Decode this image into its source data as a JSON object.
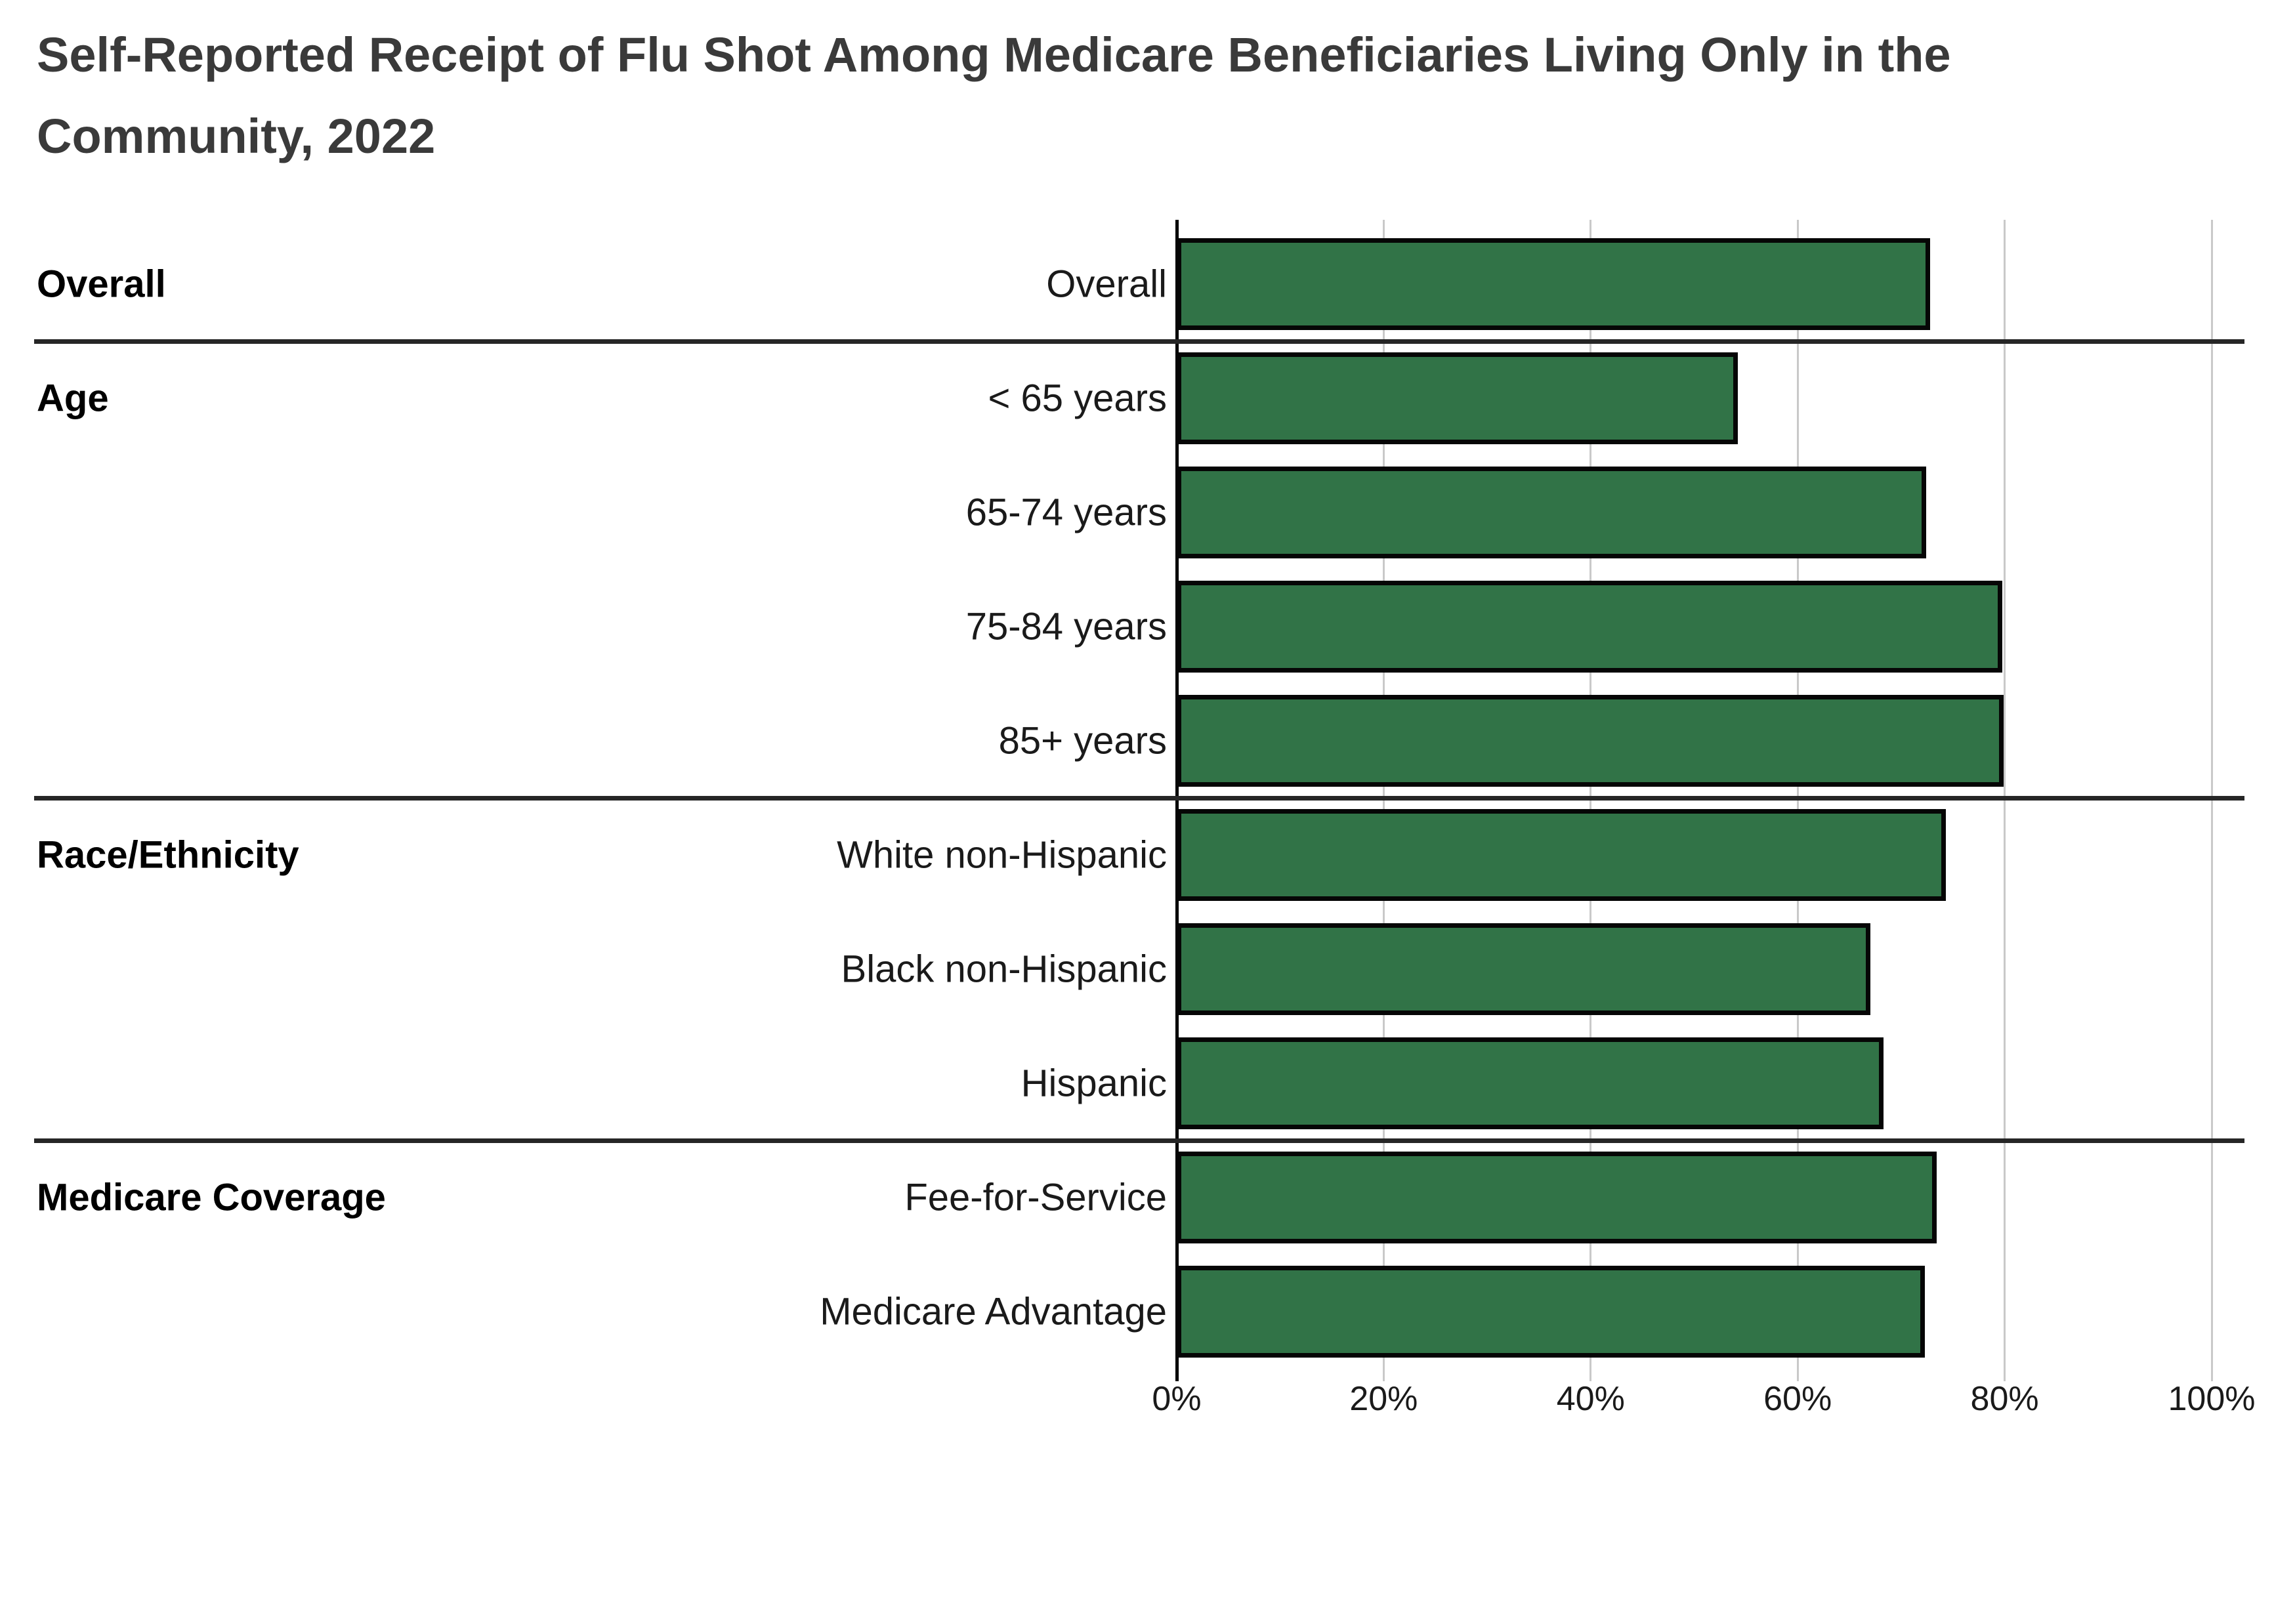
{
  "title": {
    "line1": "Self-Reported Receipt of Flu Shot Among Medicare Beneficiaries Living Only in the",
    "line2": "Community, 2022"
  },
  "chart_data": {
    "type": "bar",
    "orientation": "horizontal",
    "value_unit": "percent",
    "xlim": [
      0,
      100
    ],
    "grid": "vertical-on",
    "legend": "none",
    "bar_color": "#317347",
    "bar_border_color": "#060606",
    "x_ticks": [
      {
        "value": 0,
        "label": "0%"
      },
      {
        "value": 20,
        "label": "20%"
      },
      {
        "value": 40,
        "label": "40%"
      },
      {
        "value": 60,
        "label": "60%"
      },
      {
        "value": 80,
        "label": "80%"
      },
      {
        "value": 100,
        "label": "100%"
      }
    ],
    "groups": [
      {
        "label": "Overall",
        "rows": [
          {
            "label": "Overall",
            "value": 72.8
          }
        ]
      },
      {
        "label": "Age",
        "rows": [
          {
            "label": "< 65 years",
            "value": 54.2
          },
          {
            "label": "65-74 years",
            "value": 72.4
          },
          {
            "label": "75-84 years",
            "value": 79.8
          },
          {
            "label": "85+ years",
            "value": 79.9
          }
        ]
      },
      {
        "label": "Race/Ethnicity",
        "rows": [
          {
            "label": "White non-Hispanic",
            "value": 74.3
          },
          {
            "label": "Black non-Hispanic",
            "value": 67.0
          },
          {
            "label": "Hispanic",
            "value": 68.3
          }
        ]
      },
      {
        "label": "Medicare Coverage",
        "rows": [
          {
            "label": "Fee-for-Service",
            "value": 73.4
          },
          {
            "label": "Medicare Advantage",
            "value": 72.3
          }
        ]
      }
    ]
  }
}
